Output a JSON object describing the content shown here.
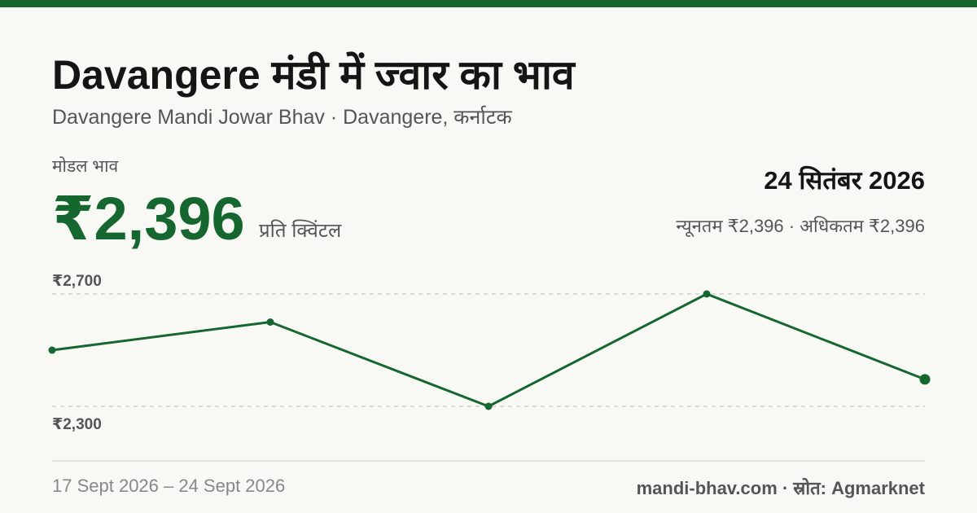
{
  "header": {
    "title": "Davangere मंडी में ज्वार का भाव",
    "subtitle": "Davangere Mandi Jowar Bhav · Davangere, कर्नाटक"
  },
  "price": {
    "label": "मोडल भाव",
    "value": "₹2,396",
    "unit": "प्रति क्विंटल",
    "date": "24 सितंबर 2026",
    "range": "न्यूनतम ₹2,396 · अधिकतम ₹2,396"
  },
  "footer": {
    "dates": "17 Sept 2026 – 24 Sept 2026",
    "source": "mandi-bhav.com · स्रोत: Agmarknet"
  },
  "chart_data": {
    "type": "line",
    "categories": [
      null,
      null,
      null,
      null,
      null
    ],
    "series": [
      {
        "name": null,
        "color": "#16662f",
        "values": [
          2500,
          2600,
          2300,
          2700,
          2396
        ]
      }
    ],
    "ylim": [
      2300,
      2700
    ],
    "yticks": [
      {
        "value": 2700,
        "label": "₹2,700"
      },
      {
        "value": 2300,
        "label": "₹2,300"
      }
    ],
    "grid": true
  }
}
